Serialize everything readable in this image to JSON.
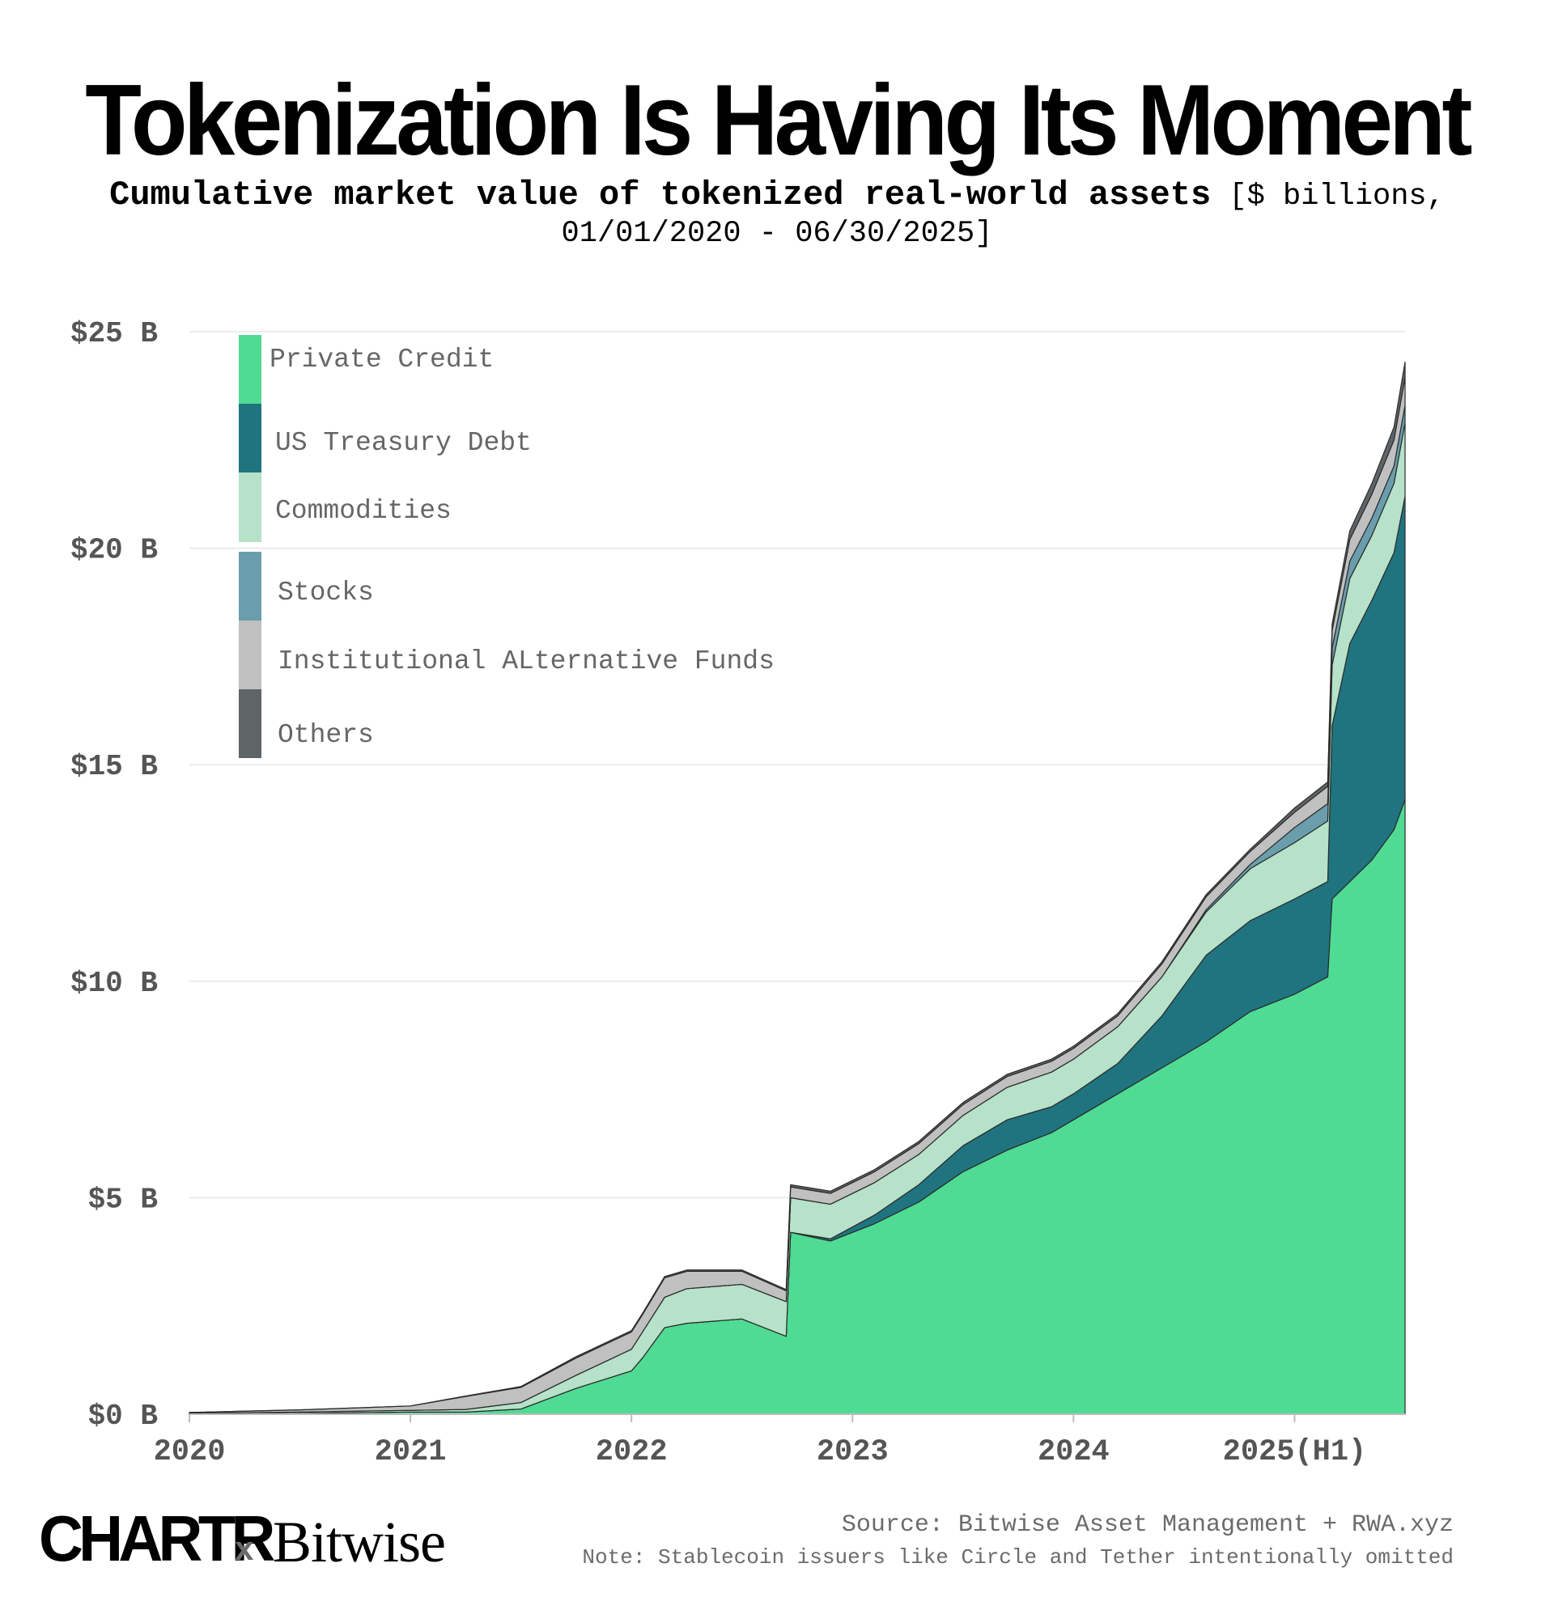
{
  "title": "Tokenization Is Having Its Moment",
  "subtitle_bold": "Cumulative market value of tokenized real-world assets",
  "subtitle_rest": "[$ billions, 01/01/2020 - 06/30/2025]",
  "footer": {
    "brand_left": "CHARTR",
    "brand_x": "x",
    "brand_right": "Bitwise",
    "source": "Source: Bitwise Asset Management + RWA.xyz",
    "note": "Note: Stablecoin issuers like Circle and Tether intentionally omitted"
  },
  "chart_data": {
    "type": "area",
    "stacked": true,
    "title": "Tokenization Is Having Its Moment",
    "ylim": [
      0,
      25
    ],
    "yticks": [
      0,
      5,
      10,
      15,
      20,
      25
    ],
    "ytick_labels": [
      "$0 B",
      "$5 B",
      "$10 B",
      "$15 B",
      "$20 B",
      "$25 B"
    ],
    "xlim": [
      2020,
      2025.5
    ],
    "xticks": [
      2020,
      2021,
      2022,
      2023,
      2024,
      2025
    ],
    "xtick_labels": [
      "2020",
      "2021",
      "2022",
      "2023",
      "2024",
      "2025(H1)"
    ],
    "grid": true,
    "legend_position": "top-left",
    "x": [
      2020.0,
      2020.5,
      2021.0,
      2021.25,
      2021.5,
      2021.75,
      2022.0,
      2022.05,
      2022.15,
      2022.25,
      2022.5,
      2022.7,
      2022.72,
      2022.9,
      2023.1,
      2023.3,
      2023.5,
      2023.7,
      2023.9,
      2024.0,
      2024.2,
      2024.4,
      2024.6,
      2024.8,
      2025.0,
      2025.15,
      2025.17,
      2025.25,
      2025.35,
      2025.45,
      2025.5
    ],
    "series": [
      {
        "name": "Private Credit",
        "color": "#4fdb93",
        "values": [
          0.0,
          0.02,
          0.05,
          0.05,
          0.12,
          0.6,
          1.0,
          1.3,
          2.0,
          2.1,
          2.2,
          1.8,
          4.2,
          4.0,
          4.4,
          4.9,
          5.6,
          6.1,
          6.5,
          6.8,
          7.4,
          8.0,
          8.6,
          9.3,
          9.7,
          10.1,
          11.9,
          12.3,
          12.8,
          13.5,
          14.2
        ]
      },
      {
        "name": "US Treasury Debt",
        "color": "#1f7480",
        "values": [
          0.0,
          0.0,
          0.0,
          0.0,
          0.0,
          0.0,
          0.0,
          0.0,
          0.0,
          0.0,
          0.0,
          0.0,
          0.0,
          0.05,
          0.2,
          0.4,
          0.6,
          0.7,
          0.6,
          0.6,
          0.7,
          1.2,
          2.0,
          2.1,
          2.2,
          2.2,
          4.0,
          5.5,
          6.0,
          6.4,
          7.0
        ]
      },
      {
        "name": "Commodities",
        "color": "#b5e2c9",
        "values": [
          0.02,
          0.03,
          0.04,
          0.06,
          0.15,
          0.3,
          0.5,
          0.6,
          0.7,
          0.8,
          0.8,
          0.8,
          0.8,
          0.8,
          0.75,
          0.7,
          0.7,
          0.75,
          0.8,
          0.8,
          0.85,
          0.9,
          1.0,
          1.2,
          1.3,
          1.4,
          1.4,
          1.5,
          1.5,
          1.6,
          1.7
        ]
      },
      {
        "name": "Stocks",
        "color": "#6a9eac",
        "values": [
          0.0,
          0.0,
          0.0,
          0.0,
          0.0,
          0.0,
          0.0,
          0.0,
          0.0,
          0.0,
          0.0,
          0.0,
          0.0,
          0.0,
          0.0,
          0.0,
          0.0,
          0.0,
          0.0,
          0.0,
          0.0,
          0.0,
          0.05,
          0.1,
          0.35,
          0.4,
          0.4,
          0.4,
          0.4,
          0.4,
          0.4
        ]
      },
      {
        "name": "Institutional ALternative Funds",
        "color": "#c0c0c0",
        "values": [
          0.02,
          0.05,
          0.1,
          0.3,
          0.35,
          0.4,
          0.4,
          0.4,
          0.45,
          0.4,
          0.3,
          0.25,
          0.25,
          0.25,
          0.25,
          0.25,
          0.25,
          0.25,
          0.25,
          0.25,
          0.25,
          0.3,
          0.3,
          0.3,
          0.35,
          0.4,
          0.4,
          0.5,
          0.55,
          0.6,
          0.65
        ]
      },
      {
        "name": "Others",
        "color": "#5f6466",
        "values": [
          0.0,
          0.0,
          0.0,
          0.01,
          0.02,
          0.03,
          0.03,
          0.03,
          0.03,
          0.03,
          0.03,
          0.03,
          0.05,
          0.05,
          0.05,
          0.05,
          0.05,
          0.05,
          0.05,
          0.05,
          0.05,
          0.05,
          0.05,
          0.05,
          0.1,
          0.1,
          0.15,
          0.2,
          0.25,
          0.3,
          0.35
        ]
      }
    ]
  }
}
